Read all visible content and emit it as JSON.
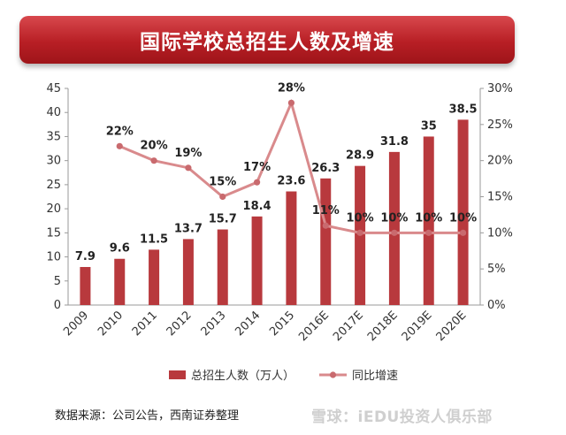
{
  "header": {
    "title": "国际学校总招生人数及增速"
  },
  "chart_data": {
    "type": "bar",
    "title": "国际学校总招生人数及增速",
    "categories": [
      "2009",
      "2010",
      "2011",
      "2012",
      "2013",
      "2014",
      "2015",
      "2016E",
      "2017E",
      "2018E",
      "2019E",
      "2020E"
    ],
    "series": [
      {
        "name": "总招生人数（万人）",
        "type": "bar",
        "axis": "left",
        "values": [
          7.9,
          9.6,
          11.5,
          13.7,
          15.7,
          18.4,
          23.6,
          26.3,
          28.9,
          31.8,
          35,
          38.5
        ],
        "labels": [
          "7.9",
          "9.6",
          "11.5",
          "13.7",
          "15.7",
          "18.4",
          "23.6",
          "26.3",
          "28.9",
          "31.8",
          "35",
          "38.5"
        ]
      },
      {
        "name": "同比增速",
        "type": "line",
        "axis": "right",
        "values": [
          null,
          22,
          20,
          19,
          15,
          17,
          28,
          11,
          10,
          10,
          10,
          10
        ],
        "labels": [
          "",
          "22%",
          "20%",
          "19%",
          "15%",
          "17%",
          "28%",
          "11%",
          "10%",
          "10%",
          "10%",
          "10%"
        ]
      }
    ],
    "y_left": {
      "min": 0,
      "max": 45,
      "ticks": [
        "0",
        "5",
        "10",
        "15",
        "20",
        "25",
        "30",
        "35",
        "40",
        "45"
      ]
    },
    "y_right": {
      "min": 0,
      "max": 30,
      "ticks": [
        "0%",
        "5%",
        "10%",
        "15%",
        "20%",
        "25%",
        "30%"
      ]
    },
    "legend_position": "bottom",
    "colors": {
      "bar": "#b8393d",
      "line": "#d98a8c",
      "marker": "#c96a6e"
    }
  },
  "footer": {
    "source": "数据来源：公司公告，西南证券整理",
    "watermark": "雪球：iEDU投资人俱乐部"
  }
}
